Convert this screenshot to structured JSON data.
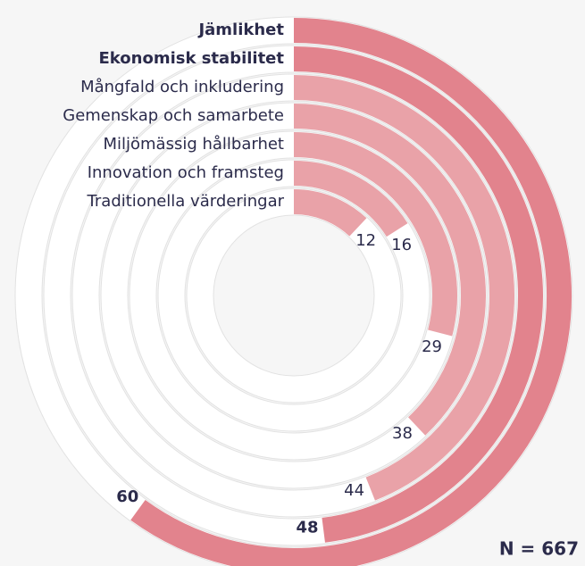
{
  "chart_data": {
    "type": "radial-bar",
    "categories": [
      "Jämlikhet",
      "Ekonomisk stabilitet",
      "Mångfald och inkludering",
      "Gemenskap och samarbete",
      "Miljömässig hållbarhet",
      "Innovation och framsteg",
      "Traditionella värderingar"
    ],
    "values": [
      60,
      48,
      44,
      38,
      29,
      16,
      12
    ],
    "colors": [
      "#e2838d",
      "#e2838d",
      "#e9a2a8",
      "#e9a2a8",
      "#e9a2a8",
      "#e9a2a8",
      "#e9a2a8"
    ],
    "emphasis": [
      true,
      true,
      false,
      false,
      false,
      false,
      false
    ],
    "xlim": [
      0,
      100
    ],
    "annotation": "N = 667"
  }
}
